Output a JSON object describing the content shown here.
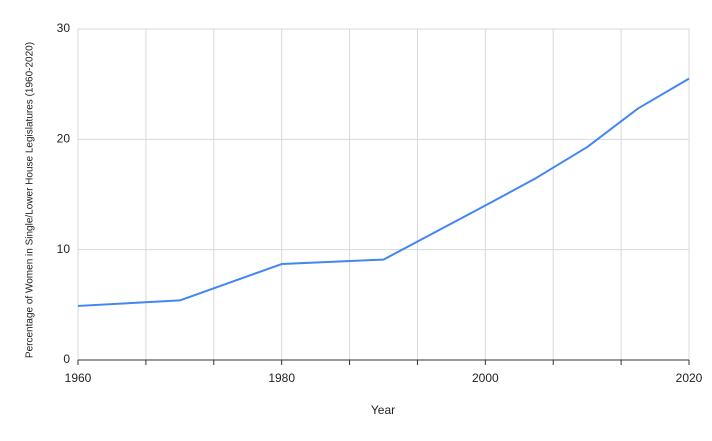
{
  "chart_data": {
    "type": "line",
    "x_label": "Year",
    "y_label": "Percentage of Women in Single/Lower House Legislatures (1960-2020)",
    "x": [
      1960,
      1970,
      1980,
      1990,
      2000,
      2005,
      2010,
      2015,
      2020
    ],
    "series": [
      {
        "name": "Percentage of Women",
        "color": "#4285f4",
        "values": [
          4.9,
          5.4,
          8.7,
          9.1,
          14.0,
          16.5,
          19.3,
          22.8,
          25.5
        ]
      }
    ],
    "xlim": [
      1960,
      2020
    ],
    "xticks": [
      1960,
      1980,
      2000,
      2020
    ],
    "ylim": [
      0,
      30
    ],
    "yticks": [
      0,
      10,
      20,
      30
    ],
    "grid": true
  }
}
